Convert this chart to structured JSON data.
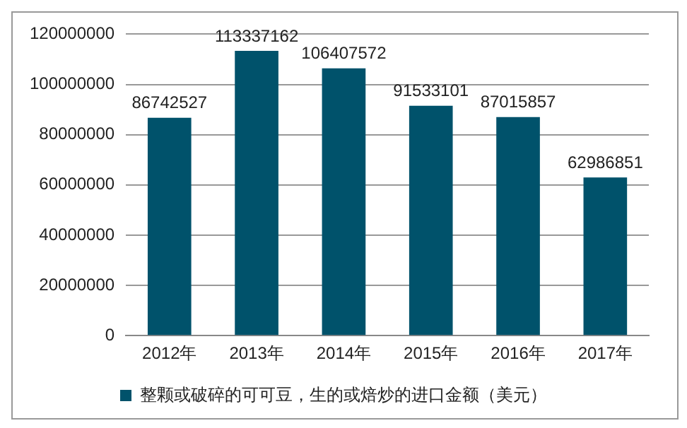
{
  "chart_data": {
    "type": "bar",
    "categories": [
      "2012年",
      "2013年",
      "2014年",
      "2015年",
      "2016年",
      "2017年"
    ],
    "series": [
      {
        "name": "整颗或破碎的可可豆，生的或焙炒的进口金额（美元）",
        "color": "#00526b",
        "values": [
          86742527,
          113337162,
          106407572,
          91533101,
          87015857,
          62986851
        ]
      }
    ],
    "ylim": [
      0,
      120000000
    ],
    "yticks": [
      0,
      20000000,
      40000000,
      60000000,
      80000000,
      100000000,
      120000000
    ],
    "grid": "y",
    "legend": "bottom",
    "data_labels": true
  }
}
